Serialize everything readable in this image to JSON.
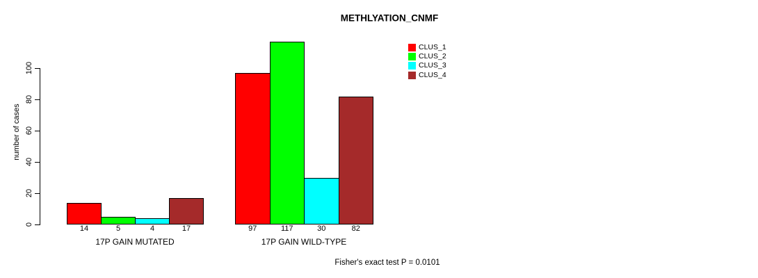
{
  "chart_data": {
    "type": "bar",
    "title": "METHLYATION_CNMF",
    "ylabel": "number of cases",
    "xlabel": "",
    "categories": [
      "17P GAIN MUTATED",
      "17P GAIN WILD-TYPE"
    ],
    "series": [
      {
        "name": "CLUS_1",
        "color": "#FF0000",
        "values": [
          14,
          97
        ]
      },
      {
        "name": "CLUS_2",
        "color": "#00FF00",
        "values": [
          5,
          117
        ]
      },
      {
        "name": "CLUS_3",
        "color": "#00FFFF",
        "values": [
          4,
          30
        ]
      },
      {
        "name": "CLUS_4",
        "color": "#A52A2A",
        "values": [
          17,
          82
        ]
      }
    ],
    "y_ticks": [
      0,
      20,
      40,
      60,
      80,
      100
    ],
    "ylim": [
      0,
      117
    ],
    "grid": false,
    "show_bar_values": true,
    "legend_position": "top-right",
    "bar_border_color": "#000000",
    "axis_color": "#000000",
    "annotation": "Fisher's exact test P = 0.0101"
  }
}
